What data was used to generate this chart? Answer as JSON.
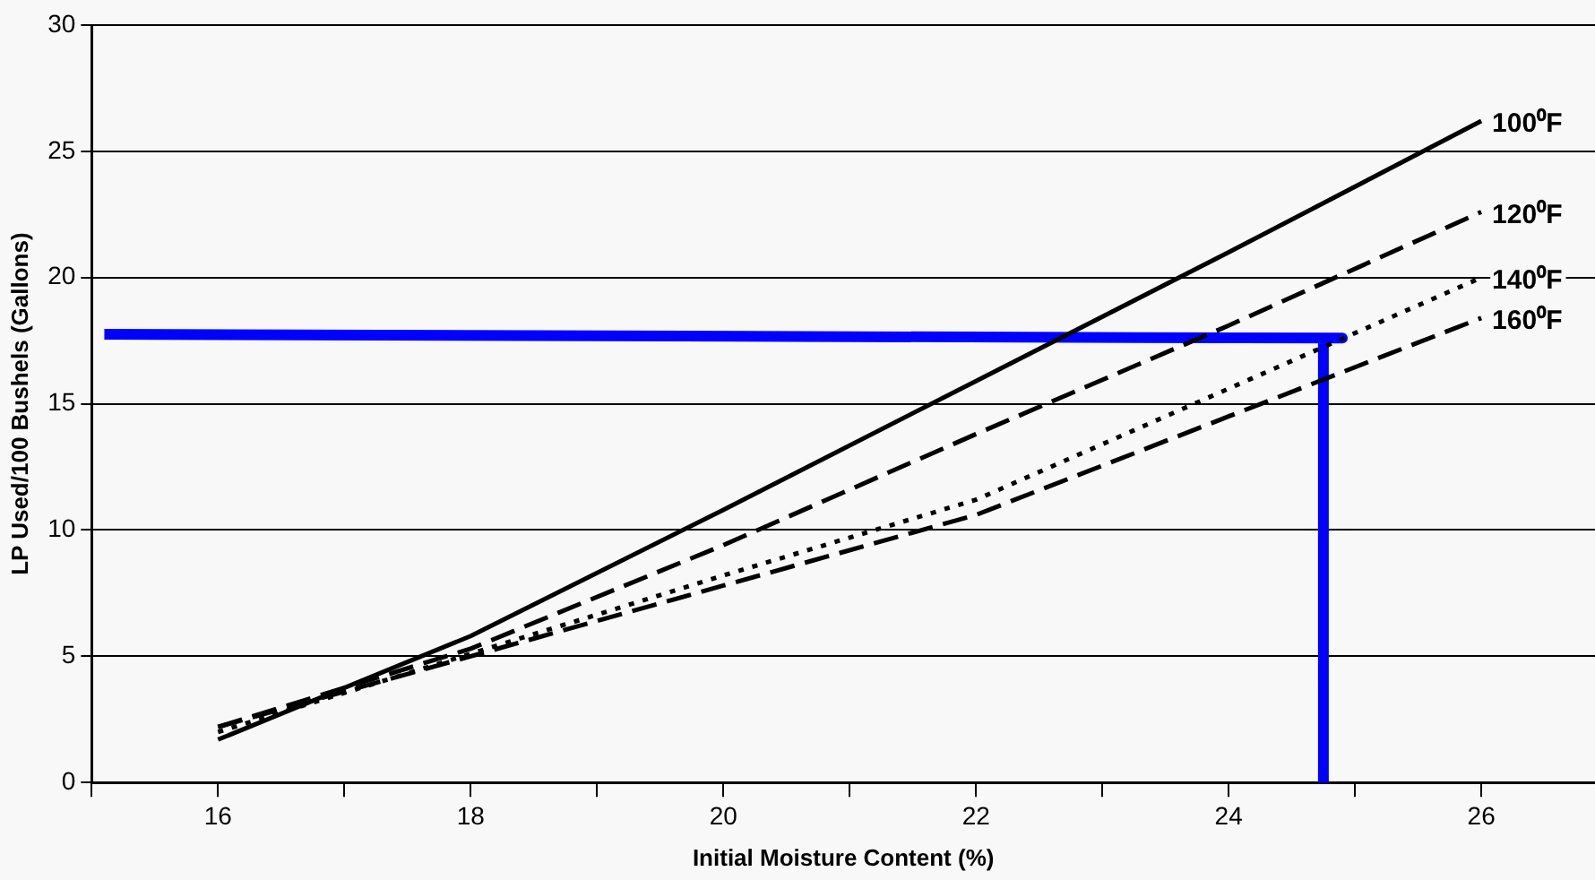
{
  "chart_data": {
    "type": "line",
    "xlabel": "Initial Moisture Content (%)",
    "ylabel": "LP Used/100 Bushels (Gallons)",
    "xlim": [
      15,
      26.9
    ],
    "xticks": [
      {
        "value": 15,
        "label": null
      },
      16,
      {
        "value": 17,
        "label": null
      },
      18,
      {
        "value": 19,
        "label": null
      },
      20,
      {
        "value": 21,
        "label": null
      },
      22,
      {
        "value": 23,
        "label": null
      },
      24,
      {
        "value": 25,
        "label": null
      },
      26
    ],
    "ylim": [
      0,
      30
    ],
    "yticks": [
      0,
      5,
      10,
      15,
      20,
      25,
      30
    ],
    "grid": "y",
    "legend": false,
    "marker": "none",
    "x": [
      16,
      18,
      20,
      22,
      24,
      26
    ],
    "series": [
      {
        "name": "100⁰F",
        "color": "#000000",
        "line_style": "solid",
        "values": [
          1.7,
          5.8,
          10.8,
          15.9,
          21,
          26.2
        ]
      },
      {
        "name": "120⁰F",
        "color": "#000000",
        "line_style": "dashed",
        "values": [
          2.2,
          5.3,
          9.4,
          13.8,
          18.1,
          22.6
        ]
      },
      {
        "name": "140⁰F",
        "color": "#000000",
        "line_style": "dotted",
        "values": [
          2,
          5.1,
          8.2,
          11.2,
          15.6,
          20
        ]
      },
      {
        "name": "160⁰F",
        "color": "#000000",
        "line_style": "dashed",
        "values": [
          2.2,
          5,
          7.8,
          10.6,
          14.5,
          18.4
        ]
      },
      {
        "color": "#0000ff",
        "line_style": "solid",
        "x": [
          15.1,
          24.9,
          24.75,
          24.75
        ],
        "values": [
          17.75,
          17.6,
          17.6,
          0
        ]
      }
    ]
  }
}
